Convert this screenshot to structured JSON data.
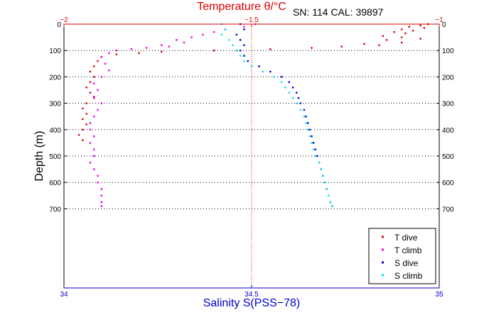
{
  "chart_data": {
    "type": "scatter",
    "title_top": "Temperature θ/°C",
    "annotation": "SN: 114  CAL: 39897",
    "xlabel_bottom": "Salinity S(PSS−78)",
    "ylabel": "Depth (m)",
    "x_bottom": {
      "lim": [
        34,
        35
      ],
      "ticks": [
        34,
        34.5,
        35
      ],
      "tick_labels": [
        "34",
        "34.5",
        "35"
      ]
    },
    "x_top": {
      "lim": [
        -2,
        -1
      ],
      "ticks": [
        -2,
        -1.5,
        -1
      ],
      "tick_labels": [
        "−2",
        "−1.5",
        "−1"
      ]
    },
    "y": {
      "lim": [
        1000,
        0
      ],
      "ticks": [
        0,
        100,
        200,
        300,
        400,
        500,
        600,
        700
      ],
      "tick_labels": [
        "0",
        "100",
        "200",
        "300",
        "400",
        "500",
        "600",
        "700"
      ]
    },
    "grid": "dotted",
    "legend_position": "bottom-right",
    "series": [
      {
        "name": "T dive",
        "axis": "top",
        "color": "#dd0000",
        "points": [
          [
            -1.03,
            0
          ],
          [
            -1.05,
            5
          ],
          [
            -1.08,
            10
          ],
          [
            -1.04,
            15
          ],
          [
            -1.1,
            20
          ],
          [
            -1.07,
            25
          ],
          [
            -1.12,
            30
          ],
          [
            -1.09,
            35
          ],
          [
            -1.15,
            45
          ],
          [
            -1.1,
            50
          ],
          [
            -1.05,
            55
          ],
          [
            -1.14,
            60
          ],
          [
            -1.1,
            70
          ],
          [
            -1.2,
            75
          ],
          [
            -1.16,
            80
          ],
          [
            -1.26,
            85
          ],
          [
            -1.34,
            90
          ],
          [
            -1.45,
            95
          ],
          [
            -1.6,
            100
          ],
          [
            -1.74,
            105
          ],
          [
            -1.8,
            110
          ],
          [
            -1.86,
            115
          ],
          [
            -1.9,
            125
          ],
          [
            -1.91,
            140
          ],
          [
            -1.92,
            160
          ],
          [
            -1.93,
            180
          ],
          [
            -1.92,
            200
          ],
          [
            -1.93,
            220
          ],
          [
            -1.94,
            240
          ],
          [
            -1.93,
            260
          ],
          [
            -1.92,
            280
          ],
          [
            -1.94,
            300
          ],
          [
            -1.95,
            320
          ],
          [
            -1.94,
            340
          ],
          [
            -1.95,
            360
          ],
          [
            -1.94,
            380
          ],
          [
            -1.95,
            400
          ],
          [
            -1.96,
            420
          ],
          [
            -1.95,
            440
          ]
        ]
      },
      {
        "name": "T climb",
        "axis": "top",
        "color": "#ee00ee",
        "points": [
          [
            -1.49,
            0
          ],
          [
            -1.52,
            10
          ],
          [
            -1.57,
            20
          ],
          [
            -1.6,
            30
          ],
          [
            -1.63,
            40
          ],
          [
            -1.66,
            50
          ],
          [
            -1.7,
            60
          ],
          [
            -1.68,
            70
          ],
          [
            -1.74,
            80
          ],
          [
            -1.72,
            85
          ],
          [
            -1.78,
            90
          ],
          [
            -1.82,
            95
          ],
          [
            -1.86,
            100
          ],
          [
            -1.88,
            110
          ],
          [
            -1.9,
            125
          ],
          [
            -1.89,
            150
          ],
          [
            -1.88,
            175
          ],
          [
            -1.9,
            200
          ],
          [
            -1.92,
            225
          ],
          [
            -1.91,
            250
          ],
          [
            -1.92,
            275
          ],
          [
            -1.9,
            300
          ],
          [
            -1.91,
            325
          ],
          [
            -1.92,
            350
          ],
          [
            -1.93,
            375
          ],
          [
            -1.93,
            400
          ],
          [
            -1.92,
            425
          ],
          [
            -1.93,
            450
          ],
          [
            -1.92,
            475
          ],
          [
            -1.92,
            500
          ],
          [
            -1.93,
            525
          ],
          [
            -1.92,
            550
          ],
          [
            -1.91,
            575
          ],
          [
            -1.91,
            600
          ],
          [
            -1.9,
            625
          ],
          [
            -1.9,
            650
          ],
          [
            -1.9,
            675
          ],
          [
            -1.9,
            690
          ]
        ]
      },
      {
        "name": "S dive",
        "axis": "bottom",
        "color": "#0000cc",
        "points": [
          [
            34.47,
            0
          ],
          [
            34.48,
            20
          ],
          [
            34.46,
            40
          ],
          [
            34.47,
            60
          ],
          [
            34.48,
            80
          ],
          [
            34.47,
            100
          ],
          [
            34.48,
            120
          ],
          [
            34.49,
            140
          ],
          [
            34.52,
            160
          ],
          [
            34.55,
            180
          ],
          [
            34.58,
            200
          ],
          [
            34.6,
            220
          ],
          [
            34.61,
            240
          ],
          [
            34.62,
            260
          ],
          [
            34.625,
            280
          ],
          [
            34.63,
            300
          ],
          [
            34.64,
            325
          ],
          [
            34.645,
            350
          ],
          [
            34.65,
            375
          ],
          [
            34.655,
            400
          ],
          [
            34.66,
            425
          ],
          [
            34.665,
            450
          ],
          [
            34.67,
            475
          ],
          [
            34.675,
            500
          ],
          [
            34.68,
            525
          ],
          [
            34.685,
            550
          ],
          [
            34.69,
            575
          ],
          [
            34.695,
            600
          ],
          [
            34.7,
            625
          ],
          [
            34.705,
            650
          ],
          [
            34.71,
            675
          ],
          [
            34.715,
            690
          ]
        ]
      },
      {
        "name": "S climb",
        "axis": "bottom",
        "color": "#00e5ee",
        "points": [
          [
            34.42,
            0
          ],
          [
            34.43,
            20
          ],
          [
            34.42,
            40
          ],
          [
            34.44,
            60
          ],
          [
            34.45,
            80
          ],
          [
            34.46,
            100
          ],
          [
            34.47,
            120
          ],
          [
            34.48,
            140
          ],
          [
            34.5,
            160
          ],
          [
            34.53,
            180
          ],
          [
            34.56,
            200
          ],
          [
            34.58,
            220
          ],
          [
            34.59,
            240
          ],
          [
            34.6,
            260
          ],
          [
            34.61,
            280
          ],
          [
            34.62,
            300
          ],
          [
            34.63,
            325
          ],
          [
            34.64,
            350
          ],
          [
            34.645,
            375
          ],
          [
            34.65,
            400
          ],
          [
            34.655,
            425
          ],
          [
            34.66,
            450
          ],
          [
            34.665,
            475
          ],
          [
            34.67,
            500
          ],
          [
            34.68,
            525
          ],
          [
            34.685,
            550
          ],
          [
            34.69,
            575
          ],
          [
            34.695,
            600
          ],
          [
            34.7,
            625
          ],
          [
            34.705,
            650
          ],
          [
            34.71,
            675
          ],
          [
            34.715,
            690
          ]
        ]
      }
    ]
  }
}
